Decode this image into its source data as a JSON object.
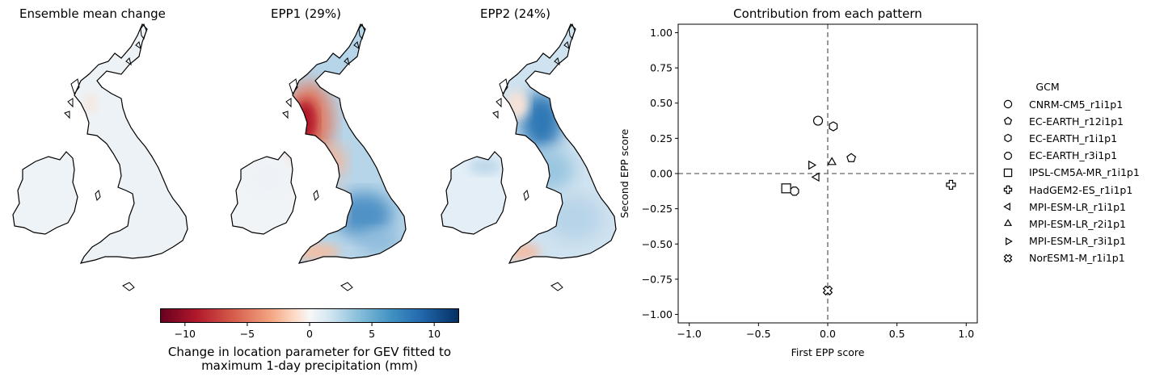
{
  "maps": {
    "titles": [
      "Ensemble mean change",
      "EPP1 (29%)",
      "EPP2 (24%)"
    ]
  },
  "colorbar": {
    "ticks": [
      -10,
      -5,
      0,
      5,
      10
    ],
    "range": [
      -12,
      12
    ],
    "label_line1": "Change in location parameter for GEV fitted to",
    "label_line2": "maximum 1-day precipitation (mm)"
  },
  "chart_data": {
    "type": "scatter",
    "title": "Contribution from each pattern",
    "xlabel": "First EPP score",
    "ylabel": "Second EPP score",
    "xlim": [
      -1.08,
      1.08
    ],
    "ylim": [
      -1.06,
      1.06
    ],
    "xticks": [
      -1.0,
      -0.5,
      0.0,
      0.5,
      1.0
    ],
    "xtick_labels": [
      "−1.0",
      "−0.5",
      "0.0",
      "0.5",
      "1.0"
    ],
    "yticks": [
      1.0,
      0.75,
      0.5,
      0.25,
      0.0,
      -0.25,
      -0.5,
      -0.75,
      -1.0
    ],
    "ytick_labels": [
      "1.00",
      "0.75",
      "0.50",
      "0.25",
      "0.00",
      "−0.25",
      "−0.50",
      "−0.75",
      "−1.00"
    ],
    "reference_lines": {
      "x": 0.0,
      "y": 0.0,
      "style": "dashed",
      "color": "#808080"
    },
    "legend_title": "GCM",
    "legend_position": "right, outside plot",
    "series": [
      {
        "name": "CNRM-CM5_r1i1p1",
        "marker": "circle",
        "x": -0.07,
        "y": 0.375
      },
      {
        "name": "EC-EARTH_r12i1p1",
        "marker": "pentagon",
        "x": 0.17,
        "y": 0.11
      },
      {
        "name": "EC-EARTH_r1i1p1",
        "marker": "hexagon",
        "x": 0.04,
        "y": 0.335
      },
      {
        "name": "EC-EARTH_r3i1p1",
        "marker": "octagon",
        "x": -0.24,
        "y": -0.125
      },
      {
        "name": "IPSL-CM5A-MR_r1i1p1",
        "marker": "square",
        "x": -0.3,
        "y": -0.105
      },
      {
        "name": "HadGEM2-ES_r1i1p1",
        "marker": "plus",
        "x": 0.89,
        "y": -0.08
      },
      {
        "name": "MPI-ESM-LR_r1i1p1",
        "marker": "triangle-left",
        "x": -0.08,
        "y": -0.025
      },
      {
        "name": "MPI-ESM-LR_r2i1p1",
        "marker": "triangle-up",
        "x": 0.03,
        "y": 0.08
      },
      {
        "name": "MPI-ESM-LR_r3i1p1",
        "marker": "triangle-right",
        "x": -0.12,
        "y": 0.06
      },
      {
        "name": "NorESM1-M_r1i1p1",
        "marker": "x-filled",
        "x": 0.0,
        "y": -0.83
      }
    ]
  }
}
